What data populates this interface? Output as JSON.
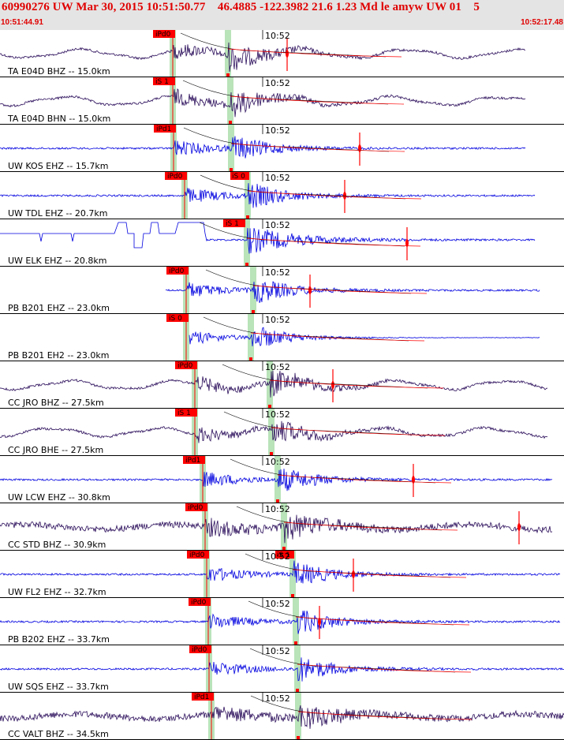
{
  "header": {
    "title": "60990276 UW Mar 30, 2015 10:51:50.77    46.4885 -122.3982 21.6 1.23 Md le amyw UW 01    5",
    "start_time": "10:51:44.91",
    "end_time": "10:52:17.48"
  },
  "colors": {
    "header_bg": "#e4e4e4",
    "title": "#e00000",
    "pick": "#ff0000",
    "window": "#b9e3b9"
  },
  "traces": [
    {
      "label": "TA E04D BHZ -- 15.0km",
      "color": "#2a0d5a",
      "kind": "wavy",
      "tick": "10:52",
      "pick": "iPd0",
      "p": 219,
      "s": 289,
      "spike": 364,
      "start": 0,
      "end": 666,
      "s_label": ""
    },
    {
      "label": "TA E04D BHN -- 15.0km",
      "color": "#2a0d5a",
      "kind": "wavy2",
      "tick": "10:52",
      "pick": "iS 1",
      "p": 219,
      "s": 292,
      "spike": 0,
      "start": 0,
      "end": 666,
      "s_label": ""
    },
    {
      "label": "UW KOS EHZ -- 15.7km",
      "color": "#0000e0",
      "kind": "noise",
      "tick": "10:52",
      "pick": "iPd1",
      "p": 220,
      "s": 293,
      "spike": 456,
      "start": 0,
      "end": 666,
      "s_label": ""
    },
    {
      "label": "UW TDL EHZ -- 20.7km",
      "color": "#0000e0",
      "kind": "noise",
      "tick": "10:52",
      "pick": "iPd0",
      "p": 234,
      "s": 314,
      "spike": 437,
      "start": 0,
      "end": 678,
      "s_label": "iS 0"
    },
    {
      "label": "UW ELK EHZ -- 20.8km",
      "color": "#0000e0",
      "kind": "steps",
      "tick": "10:52",
      "pick": "iS 1",
      "p": 0,
      "s": 313,
      "spike": 516,
      "start": 0,
      "end": 678,
      "s_label": ""
    },
    {
      "label": "PB B201 EHZ -- 23.0km",
      "color": "#0000e0",
      "kind": "noise",
      "tick": "10:52",
      "pick": "iPd0",
      "p": 236,
      "s": 321,
      "spike": 393,
      "start": 210,
      "end": 684,
      "s_label": ""
    },
    {
      "label": "PB B201 EH2 -- 23.0km",
      "color": "#0000e0",
      "kind": "quiet",
      "tick": "10:52",
      "pick": "iS 0",
      "p": 236,
      "s": 318,
      "spike": 0,
      "start": 240,
      "end": 684,
      "s_label": ""
    },
    {
      "label": "CC JRO BHZ -- 27.5km",
      "color": "#2a0d5a",
      "kind": "wavy",
      "tick": "10:52",
      "pick": "iPd0",
      "p": 247,
      "s": 342,
      "spike": 422,
      "start": 0,
      "end": 694,
      "s_label": ""
    },
    {
      "label": "CC JRO BHE -- 27.5km",
      "color": "#2a0d5a",
      "kind": "wavy2",
      "tick": "10:52",
      "pick": "iS 1",
      "p": 247,
      "s": 344,
      "spike": 0,
      "start": 0,
      "end": 694,
      "s_label": ""
    },
    {
      "label": "UW LCW EHZ -- 30.8km",
      "color": "#0000e0",
      "kind": "noise",
      "tick": "10:52",
      "pick": "iPd1",
      "p": 257,
      "s": 352,
      "spike": 524,
      "start": 0,
      "end": 700,
      "s_label": ""
    },
    {
      "label": "CC STD BHZ -- 30.9km",
      "color": "#2a0d5a",
      "kind": "dense",
      "tick": "10:52",
      "pick": "iPd0",
      "p": 260,
      "s": 360,
      "spike": 658,
      "start": 0,
      "end": 700,
      "s_label": ""
    },
    {
      "label": "UW FL2 EHZ -- 32.7km",
      "color": "#0000e0",
      "kind": "noise",
      "tick": "10:52",
      "pick": "iPd0",
      "p": 262,
      "s": 371,
      "spike": 448,
      "start": 0,
      "end": 710,
      "s_label": "iS 1"
    },
    {
      "label": "PB B202 EHZ -- 33.7km",
      "color": "#0000e0",
      "kind": "noise",
      "tick": "10:52",
      "pick": "iPd0",
      "p": 264,
      "s": 375,
      "spike": 405,
      "start": 0,
      "end": 710,
      "s_label": ""
    },
    {
      "label": "UW SQS EHZ -- 33.7km",
      "color": "#0000e0",
      "kind": "noise",
      "tick": "10:52",
      "pick": "iPd0",
      "p": 265,
      "s": 377,
      "spike": 0,
      "start": 0,
      "end": 715,
      "s_label": ""
    },
    {
      "label": "CC VALT BHZ -- 34.5km",
      "color": "#2a0d5a",
      "kind": "dense",
      "tick": "10:52",
      "pick": "iPd1",
      "p": 268,
      "s": 378,
      "spike": 0,
      "start": 0,
      "end": 715,
      "s_label": ""
    }
  ]
}
